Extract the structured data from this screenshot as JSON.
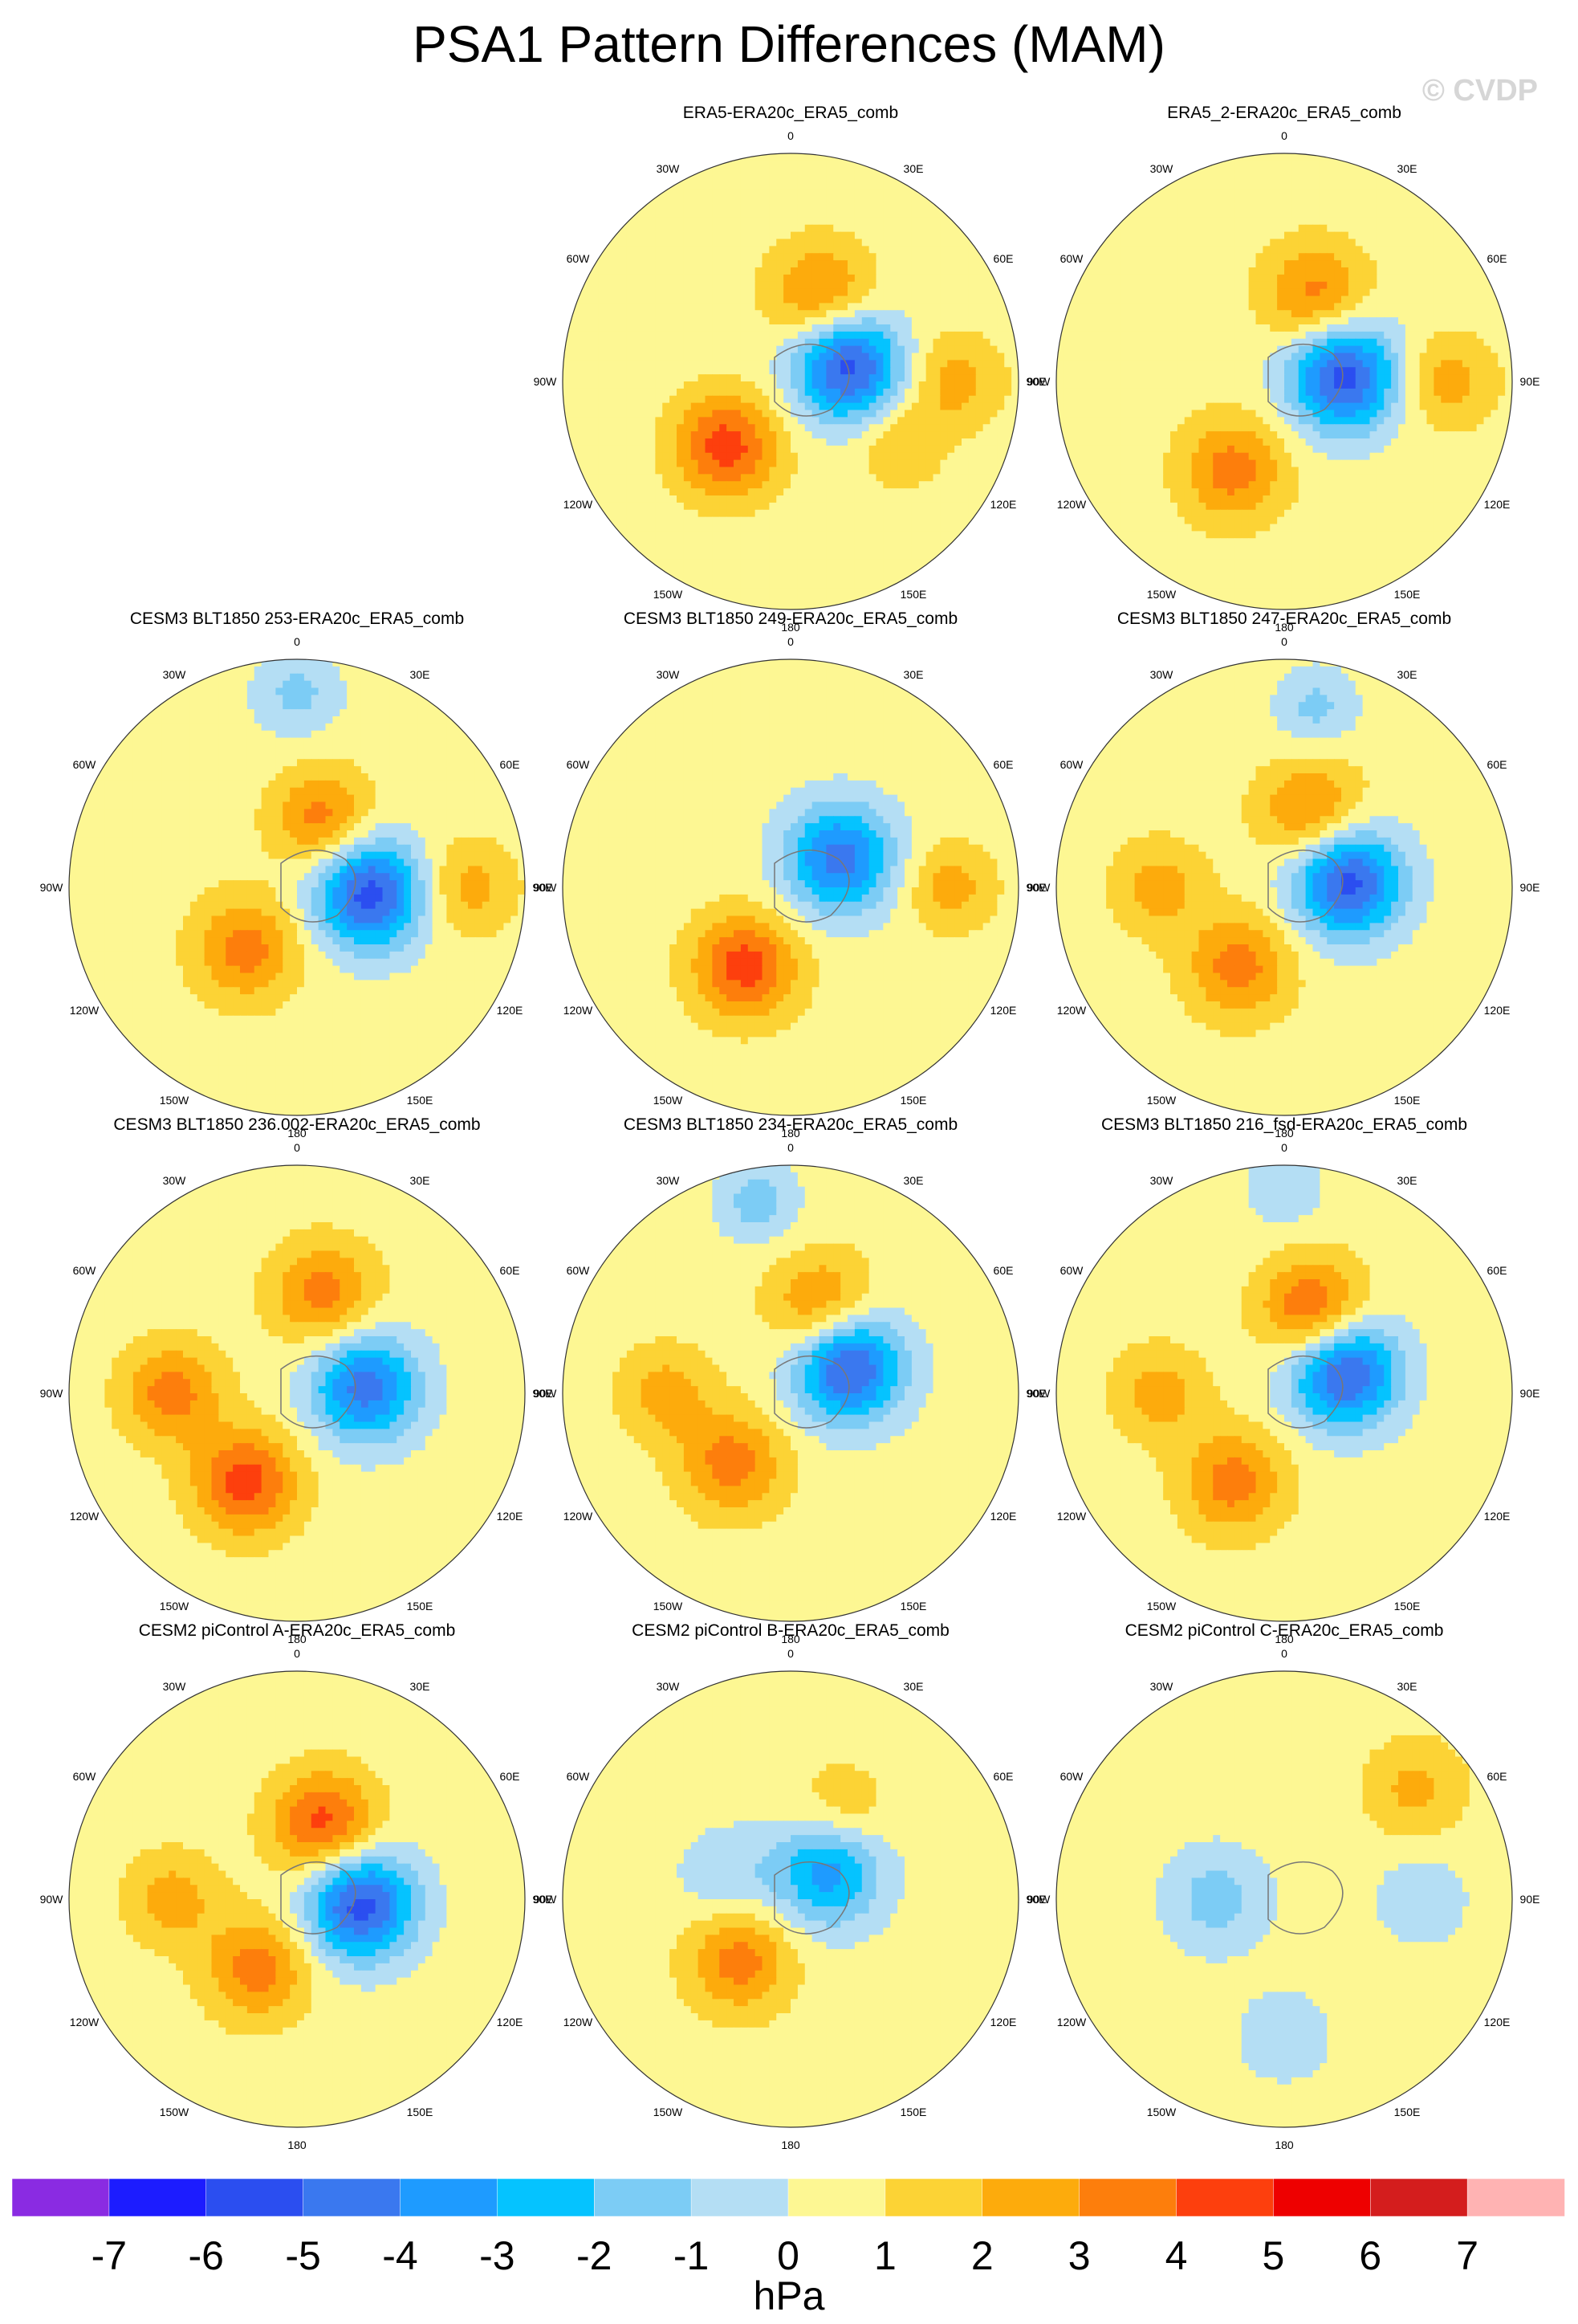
{
  "title": "PSA1 Pattern Differences (MAM)",
  "watermark": "© CVDP",
  "chart_data": {
    "type": "heatmap",
    "projection": "south-polar-stereographic",
    "variable_unit": "hPa",
    "longitude_labels": [
      "0",
      "30E",
      "60E",
      "90E",
      "120E",
      "150E",
      "180",
      "150W",
      "120W",
      "90W",
      "60W",
      "30W"
    ],
    "colorbar": {
      "levels": [
        "-7",
        "-6",
        "-5",
        "-4",
        "-3",
        "-2",
        "-1",
        "0",
        "1",
        "2",
        "3",
        "4",
        "5",
        "6",
        "7"
      ],
      "colors": [
        "#8a2be2",
        "#1c1cff",
        "#2b4ef0",
        "#3a78ef",
        "#1e9bff",
        "#05c3ff",
        "#7cccf5",
        "#b4def4",
        "#fdf793",
        "#fcd335",
        "#fdab0c",
        "#fd7e0c",
        "#fd3f0d",
        "#ee0000",
        "#d41d1d",
        "#ffb3b3"
      ],
      "label": "hPa"
    },
    "panels": [
      {
        "title": "ERA5-ERA20c_ERA5_comb",
        "features": [
          {
            "lon": 105,
            "r": 0.26,
            "v": -6,
            "w": 1.1
          },
          {
            "lon": 315,
            "r": 0.4,
            "v": 4,
            "w": 1.0
          },
          {
            "lon": 160,
            "r": 0.4,
            "v": 3,
            "w": 1.0
          },
          {
            "lon": 90,
            "r": 0.72,
            "v": 2,
            "w": 0.8
          },
          {
            "lon": 60,
            "r": 0.55,
            "v": 1.5,
            "w": 0.7
          }
        ]
      },
      {
        "title": "ERA5_2-ERA20c_ERA5_comb",
        "features": [
          {
            "lon": 95,
            "r": 0.26,
            "v": -6,
            "w": 1.1
          },
          {
            "lon": 330,
            "r": 0.45,
            "v": 3,
            "w": 1.0
          },
          {
            "lon": 160,
            "r": 0.4,
            "v": 3,
            "w": 1.0
          },
          {
            "lon": 90,
            "r": 0.72,
            "v": 2,
            "w": 0.8
          }
        ]
      },
      {
        "title": "CESM3 BLT1850 253-ERA20c_ERA5_comb",
        "features": [
          {
            "lon": 85,
            "r": 0.32,
            "v": -6,
            "w": 1.1
          },
          {
            "lon": 320,
            "r": 0.35,
            "v": 3,
            "w": 1.0
          },
          {
            "lon": 160,
            "r": 0.32,
            "v": 3,
            "w": 0.9
          },
          {
            "lon": 90,
            "r": 0.75,
            "v": 2,
            "w": 0.8
          },
          {
            "lon": 180,
            "r": 0.85,
            "v": -1.8,
            "w": 0.7
          }
        ]
      },
      {
        "title": "CESM3 BLT1850 249-ERA20c_ERA5_comb",
        "features": [
          {
            "lon": 120,
            "r": 0.25,
            "v": -5,
            "w": 1.1
          },
          {
            "lon": 330,
            "r": 0.4,
            "v": 4,
            "w": 1.0
          },
          {
            "lon": 90,
            "r": 0.7,
            "v": 2,
            "w": 0.7
          }
        ]
      },
      {
        "title": "CESM3 BLT1850 247-ERA20c_ERA5_comb",
        "features": [
          {
            "lon": 95,
            "r": 0.28,
            "v": -6,
            "w": 1.1
          },
          {
            "lon": 330,
            "r": 0.4,
            "v": 3,
            "w": 1.0
          },
          {
            "lon": 160,
            "r": 0.35,
            "v": 3,
            "w": 1.0
          },
          {
            "lon": 270,
            "r": 0.55,
            "v": 2,
            "w": 0.8
          },
          {
            "lon": 170,
            "r": 0.8,
            "v": -1.8,
            "w": 0.6
          }
        ]
      },
      {
        "title": "CESM3 BLT1850 236.002-ERA20c_ERA5_comb",
        "features": [
          {
            "lon": 95,
            "r": 0.3,
            "v": -5,
            "w": 1.1
          },
          {
            "lon": 330,
            "r": 0.45,
            "v": 4,
            "w": 1.0
          },
          {
            "lon": 165,
            "r": 0.45,
            "v": 3,
            "w": 1.0
          },
          {
            "lon": 270,
            "r": 0.55,
            "v": 3,
            "w": 0.9
          }
        ]
      },
      {
        "title": "CESM3 BLT1850 234-ERA20c_ERA5_comb",
        "features": [
          {
            "lon": 115,
            "r": 0.28,
            "v": -6,
            "w": 1.1
          },
          {
            "lon": 320,
            "r": 0.4,
            "v": 3,
            "w": 1.0
          },
          {
            "lon": 160,
            "r": 0.4,
            "v": 3,
            "w": 1.0
          },
          {
            "lon": 270,
            "r": 0.55,
            "v": 2,
            "w": 0.8
          },
          {
            "lon": 190,
            "r": 0.85,
            "v": -2,
            "w": 0.6
          }
        ]
      },
      {
        "title": "CESM3 BLT1850 216_fsd-ERA20c_ERA5_comb",
        "features": [
          {
            "lon": 110,
            "r": 0.28,
            "v": -6,
            "w": 1.1
          },
          {
            "lon": 330,
            "r": 0.45,
            "v": 3,
            "w": 1.0
          },
          {
            "lon": 160,
            "r": 0.38,
            "v": 4,
            "w": 1.0
          },
          {
            "lon": 270,
            "r": 0.55,
            "v": 2,
            "w": 0.8
          },
          {
            "lon": 180,
            "r": 0.9,
            "v": -1.5,
            "w": 0.5
          }
        ]
      },
      {
        "title": "CESM2 piControl A-ERA20c_ERA5_comb",
        "features": [
          {
            "lon": 85,
            "r": 0.28,
            "v": -6,
            "w": 1.1
          },
          {
            "lon": 330,
            "r": 0.35,
            "v": 3,
            "w": 1.0
          },
          {
            "lon": 160,
            "r": 0.35,
            "v": 4,
            "w": 1.0
          },
          {
            "lon": 270,
            "r": 0.55,
            "v": 2,
            "w": 0.8
          }
        ]
      },
      {
        "title": "CESM2 piControl B-ERA20c_ERA5_comb",
        "features": [
          {
            "lon": 125,
            "r": 0.2,
            "v": -4,
            "w": 1.1
          },
          {
            "lon": 320,
            "r": 0.35,
            "v": 3,
            "w": 1.0
          },
          {
            "lon": 250,
            "r": 0.3,
            "v": -1.5,
            "w": 0.8
          },
          {
            "lon": 150,
            "r": 0.45,
            "v": 1.5,
            "w": 0.8
          }
        ]
      },
      {
        "title": "CESM2 piControl C-ERA20c_ERA5_comb",
        "features": [
          {
            "lon": 270,
            "r": 0.3,
            "v": -2,
            "w": 1.0
          },
          {
            "lon": 130,
            "r": 0.75,
            "v": 1.8,
            "w": 0.9
          },
          {
            "lon": 90,
            "r": 0.6,
            "v": -1.2,
            "w": 0.9
          },
          {
            "lon": 0,
            "r": 0.6,
            "v": -1.2,
            "w": 0.9
          }
        ]
      }
    ]
  }
}
